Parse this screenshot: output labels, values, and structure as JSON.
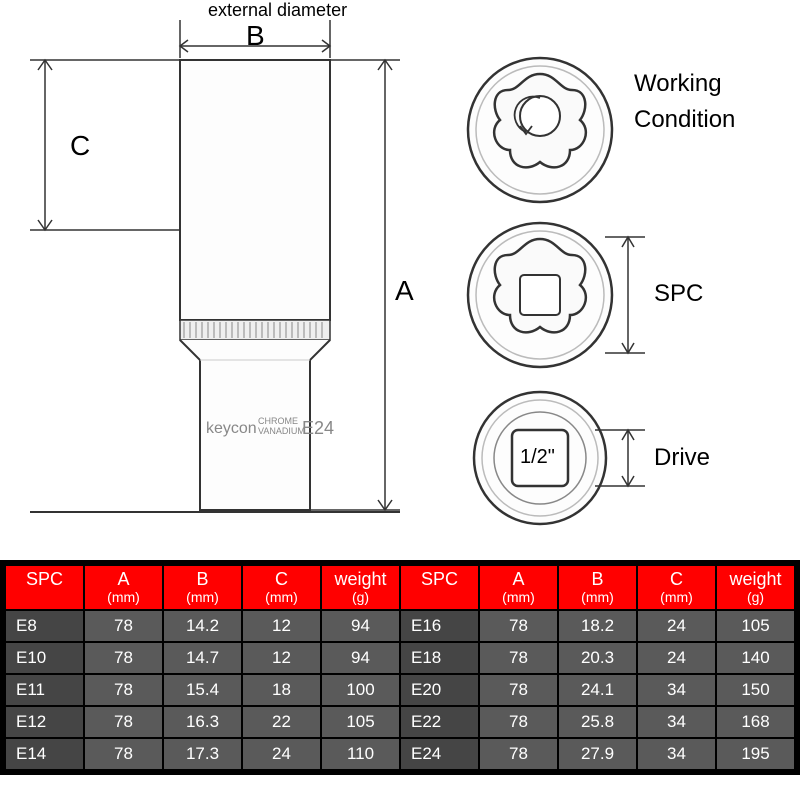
{
  "diagram": {
    "external_diameter_label": "external diameter",
    "dims": {
      "A": "A",
      "B": "B",
      "C": "C"
    },
    "socket_brand": "keycon",
    "socket_material_top": "CHROME",
    "socket_material_bot": "VANADIUM",
    "socket_size": "E24",
    "top_view": {
      "label1": "Working",
      "label2": "Condition"
    },
    "spc_view": {
      "label": "SPC"
    },
    "drive_view": {
      "label": "Drive",
      "size": "1/2\""
    },
    "stroke": "#333333",
    "fill_light": "#f5f5f5"
  },
  "table": {
    "header_bg": "#ff0000",
    "cell_bg": "#5a5a5a",
    "spc_bg": "#454545",
    "columns": [
      {
        "label": "SPC",
        "unit": ""
      },
      {
        "label": "A",
        "unit": "(mm)"
      },
      {
        "label": "B",
        "unit": "(mm)"
      },
      {
        "label": "C",
        "unit": "(mm)"
      },
      {
        "label": "weight",
        "unit": "(g)"
      }
    ],
    "left_rows": [
      {
        "spc": "E8",
        "a": "78",
        "b": "14.2",
        "c": "12",
        "w": "94"
      },
      {
        "spc": "E10",
        "a": "78",
        "b": "14.7",
        "c": "12",
        "w": "94"
      },
      {
        "spc": "E11",
        "a": "78",
        "b": "15.4",
        "c": "18",
        "w": "100"
      },
      {
        "spc": "E12",
        "a": "78",
        "b": "16.3",
        "c": "22",
        "w": "105"
      },
      {
        "spc": "E14",
        "a": "78",
        "b": "17.3",
        "c": "24",
        "w": "110"
      }
    ],
    "right_rows": [
      {
        "spc": "E16",
        "a": "78",
        "b": "18.2",
        "c": "24",
        "w": "105"
      },
      {
        "spc": "E18",
        "a": "78",
        "b": "20.3",
        "c": "24",
        "w": "140"
      },
      {
        "spc": "E20",
        "a": "78",
        "b": "24.1",
        "c": "34",
        "w": "150"
      },
      {
        "spc": "E22",
        "a": "78",
        "b": "25.8",
        "c": "34",
        "w": "168"
      },
      {
        "spc": "E24",
        "a": "78",
        "b": "27.9",
        "c": "34",
        "w": "195"
      }
    ]
  }
}
